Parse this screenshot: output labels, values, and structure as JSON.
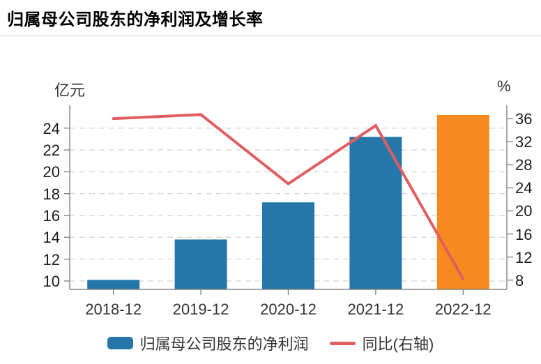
{
  "title": "归属母公司股东的净利润及增长率",
  "left_axis": {
    "unit": "亿元",
    "ticks": [
      24,
      22,
      20,
      18,
      16,
      14,
      12,
      10
    ],
    "min": 9.23,
    "max": 26.09
  },
  "right_axis": {
    "unit": "%",
    "ticks": [
      36,
      32,
      28,
      24,
      20,
      16,
      12,
      8
    ],
    "min": 6.39,
    "max": 38.31
  },
  "chart_data": {
    "type": "bar+line",
    "title": "归属母公司股东的净利润及增长率",
    "categories": [
      "2018-12",
      "2019-12",
      "2020-12",
      "2021-12",
      "2022-12"
    ],
    "series": [
      {
        "name": "归属母公司股东的净利润",
        "type": "bar",
        "axis": "left",
        "unit": "亿元",
        "values": [
          10.1,
          13.8,
          17.2,
          23.2,
          25.2
        ],
        "bar_colors": [
          "#2577A9",
          "#2577A9",
          "#2577A9",
          "#2577A9",
          "#F68A1E"
        ]
      },
      {
        "name": "同比(右轴)",
        "type": "line",
        "axis": "right",
        "unit": "%",
        "values": [
          36.0,
          36.7,
          24.7,
          34.8,
          8.2
        ],
        "color": "#E05E60"
      }
    ],
    "left_ylim": [
      9.23,
      26.09
    ],
    "right_ylim": [
      6.39,
      38.31
    ],
    "grid": "horizontal-dashed",
    "legend_position": "bottom-center"
  },
  "legend": {
    "items": [
      {
        "label": "归属母公司股东的净利润",
        "type": "bar",
        "color": "#2577A9"
      },
      {
        "label": "同比(右轴)",
        "type": "line",
        "color": "#E05E60"
      }
    ]
  },
  "colors": {
    "bar_blue": "#2577A9",
    "bar_orange": "#F68A1E",
    "line_red": "#E05E60",
    "axis": "#838383",
    "gridline": "#DBDBDB",
    "title_text": "#000000",
    "tick_text": "#1A1A1A"
  }
}
